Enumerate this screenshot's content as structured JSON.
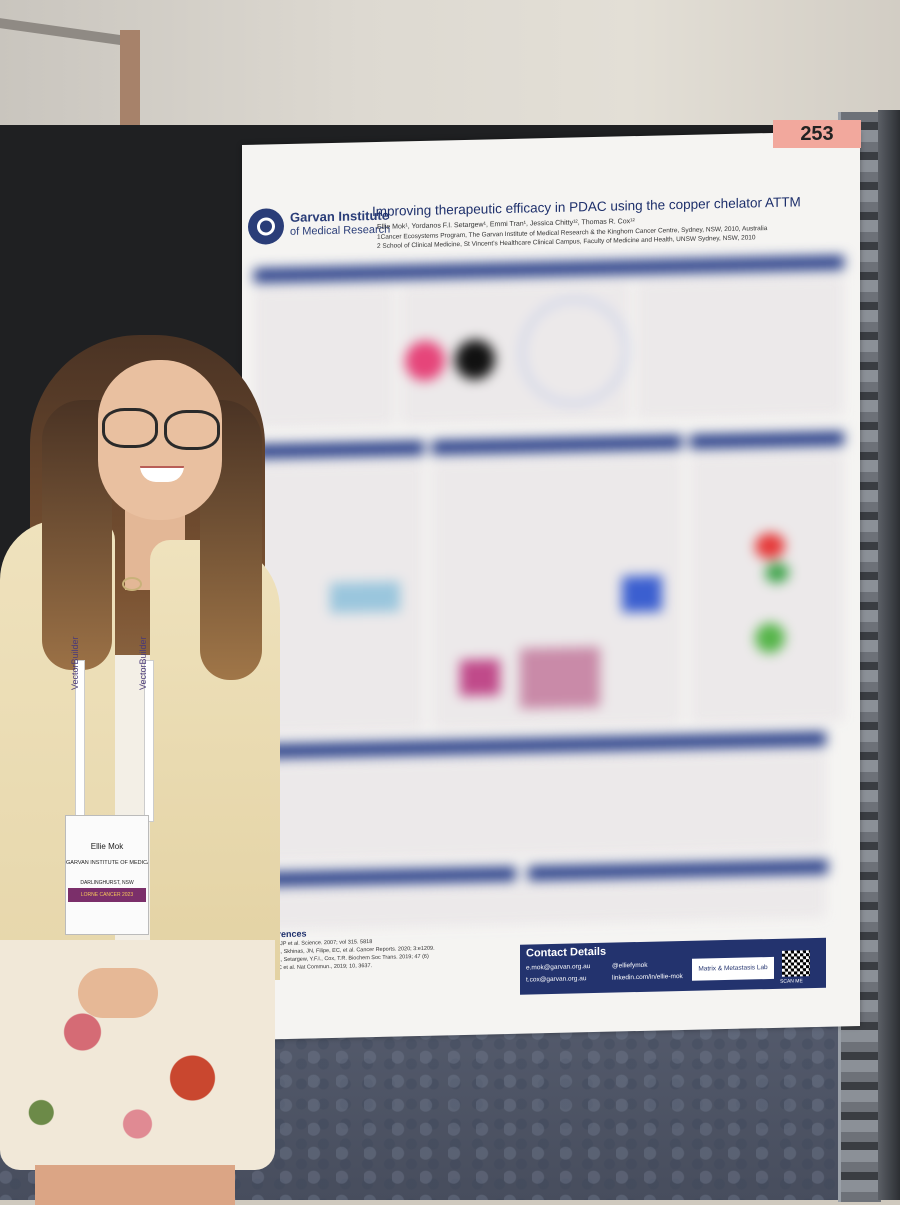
{
  "scene": {
    "description_hidden": false,
    "board_number": "253"
  },
  "poster": {
    "logo": {
      "name": "Garvan Institute",
      "subtitle": "of Medical Research"
    },
    "title": "Improving therapeutic efficacy in PDAC using the copper chelator ATTM",
    "authors": "Ellie Mok¹, Yordanos F.I. Setargew¹, Emmi Tran¹, Jessica Chitty¹², Thomas R. Cox¹²",
    "affiliation_1": "1Cancer Ecosystems Program, The Garvan Institute of Medical Research & the Kinghorn Cancer Centre, Sydney, NSW, 2010, Australia",
    "affiliation_2": "2 School of Clinical Medicine, St Vincent's Healthcare Clinical Campus, Faculty of Medicine and Health, UNSW Sydney, NSW, 2010",
    "references": {
      "title": "References",
      "lines": [
        "Colman, JP et al. Science. 2007; vol 315. 5818",
        "Chitty, JL, Skhinas, JN, Filipe, EC, et al. Cancer Reports. 2020; 3:e1209.",
        "Chitty, JL, Setargew, Y.F.I., Cox, T.R. Biochem Soc Trans. 2019; 47 (6)",
        "Vennin, C et al. Nat Commun., 2019; 10, 3637."
      ]
    },
    "contact": {
      "title": "Contact Details",
      "email_1": "e.mok@garvan.org.au",
      "email_2": "t.cox@garvan.org.au",
      "twitter": "@elliefymok",
      "linkedin": "linkedin.com/in/ellie-mok",
      "lab": "Matrix & Metastasis Lab",
      "qr_label": "SCAN ME"
    }
  },
  "badge": {
    "name": "Ellie Mok",
    "org": "GARVAN INSTITUTE OF MEDICAL RESEARCH",
    "location": "DARLINGHURST, NSW",
    "event": "LORNE CANCER 2023"
  },
  "lanyard": {
    "text": "VectorBuilder"
  },
  "colors": {
    "poster_navy": "#23336e",
    "board_number_bg": "#f2a89d",
    "cardigan": "#efe2bd"
  }
}
